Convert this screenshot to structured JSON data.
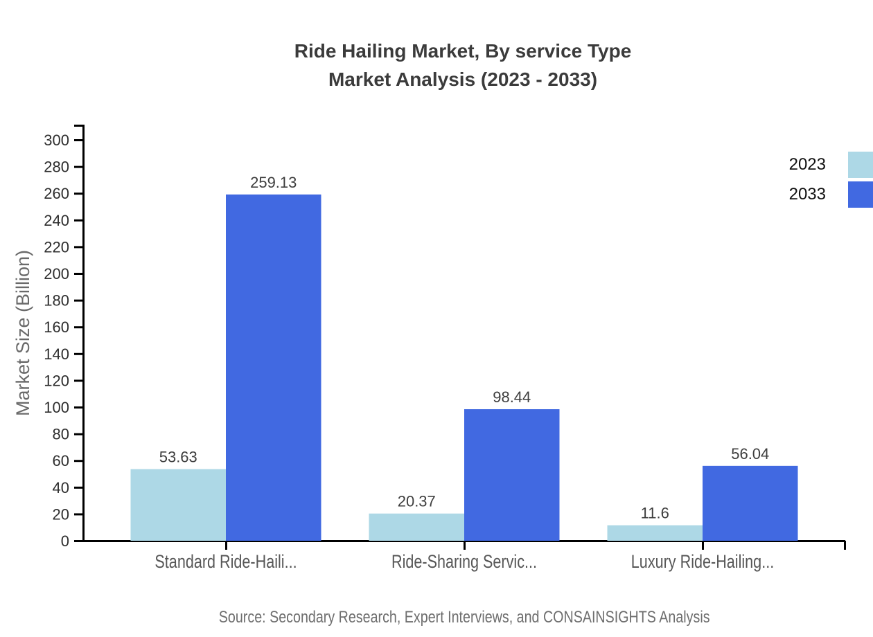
{
  "chart_data": {
    "type": "bar",
    "title": "Ride Hailing Market, By service Type",
    "subtitle": "Market Analysis (2023 - 2033)",
    "categories": [
      "Standard Ride-Haili...",
      "Ride-Sharing Servic...",
      "Luxury Ride-Hailing..."
    ],
    "series": [
      {
        "name": "2023",
        "color": "#ADD8E6",
        "values": [
          53.63,
          20.37,
          11.6
        ]
      },
      {
        "name": "2033",
        "color": "#4169E1",
        "values": [
          259.13,
          98.44,
          56.04
        ]
      }
    ],
    "value_labels": [
      [
        "53.63",
        "20.37",
        "11.6"
      ],
      [
        "259.13",
        "98.44",
        "56.04"
      ]
    ],
    "xlabel": "",
    "ylabel": "Market Size (Billion)",
    "ylim": [
      0,
      300
    ],
    "ytick_step": 20,
    "grid": false,
    "legend_position": "top-right",
    "source": "Source: Secondary Research, Expert Interviews, and CONSAINSIGHTS Analysis",
    "colors": {
      "axis": "#000000",
      "tick_label": "#2e2e2e",
      "value_label": "#3d3d3d",
      "category_label": "#575757",
      "title": "#3b3b3b",
      "source": "#6e6e6e",
      "y_title": "#6a6a6a",
      "legend_text": "#111111"
    }
  }
}
